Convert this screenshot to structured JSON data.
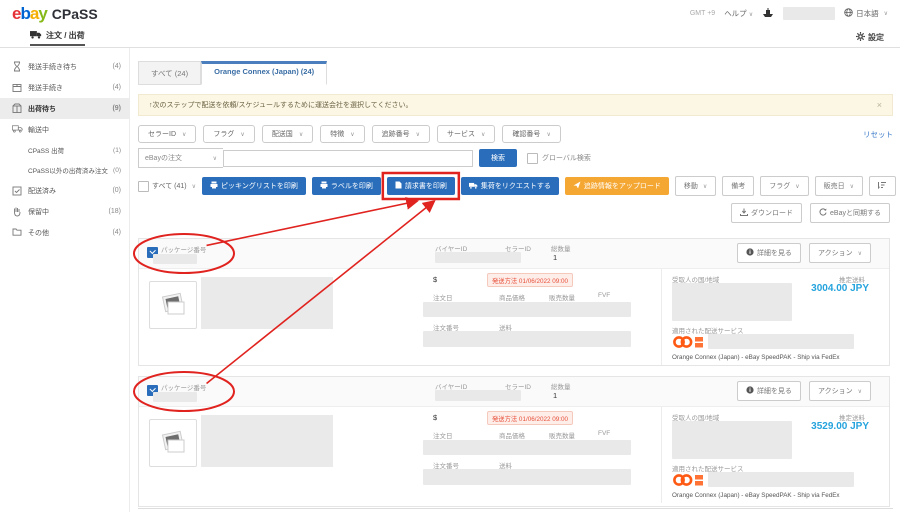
{
  "brand": {
    "e": "e",
    "b": "b",
    "a": "a",
    "y": "y",
    "product": "CPaSS"
  },
  "topbar": {
    "timezone": "GMT +9",
    "help": "ヘルプ",
    "language": "日本語"
  },
  "navbar": {
    "orders_tab": "注文 / 出荷",
    "settings": "設定"
  },
  "sidebar": {
    "items": [
      {
        "label": "発送手続き待ち",
        "count": "(4)"
      },
      {
        "label": "発送手続き",
        "count": "(4)"
      },
      {
        "label": "出荷待ち",
        "count": "(9)"
      },
      {
        "label": "輸送中",
        "count": ""
      },
      {
        "label": "CPaSS 出荷",
        "count": "(1)"
      },
      {
        "label": "CPaSS以外の出荷済み注文",
        "count": "(0)"
      },
      {
        "label": "配送済み",
        "count": "(0)"
      },
      {
        "label": "保留中",
        "count": "(18)"
      },
      {
        "label": "その他",
        "count": "(4)"
      }
    ]
  },
  "tabs": {
    "all": "すべて (24)",
    "carrier": "Orange Connex (Japan) (24)"
  },
  "banner": {
    "text": "↑次のステップで配送を依頼/スケジュールするために運送会社を選択してください。",
    "close": "×"
  },
  "filters": {
    "chips": [
      "セラーID",
      "フラグ",
      "配送国",
      "特徴",
      "追跡番号",
      "サービス",
      "確認番号"
    ],
    "reset": "リセット"
  },
  "search": {
    "category": "eBayの注文",
    "button": "検索",
    "global_label": "グローバル検索"
  },
  "actions": {
    "select_all": "すべて (41)",
    "print_picking": "ピッキングリストを印刷",
    "print_labels": "ラベルを印刷",
    "print_invoice": "請求書を印刷",
    "request_pickup": "集荷をリクエストする",
    "upload_tracking": "追跡情報をアップロード",
    "move": "移動",
    "memo": "備考",
    "flag": "フラグ",
    "sale_date": "販売日"
  },
  "list_tools": {
    "download": "ダウンロード",
    "sync": "eBayと同期する"
  },
  "card_labels": {
    "package_no": "パッケージ番号",
    "buyer_id": "バイヤーID",
    "seller_id": "セラーID",
    "total_qty": "総数量",
    "view_details": "詳細を見る",
    "action": "アクション",
    "currency": "$",
    "order_date": "注文日",
    "item_price": "商品価格",
    "sold_qty": "販売数量",
    "fvf": "FVF",
    "order_no": "注文番号",
    "shipping_fee": "送料",
    "recipient_region": "受取人の国/地域",
    "estimated_shipping": "推定送料",
    "applied_service": "適用された配送サービス"
  },
  "orders": [
    {
      "total_qty": "1",
      "ship_deadline": "発送方法 01/06/2022 09:00",
      "estimated_cost": "3004.00 JPY",
      "service": "Orange Connex (Japan) - eBay SpeedPAK - Ship via FedEx"
    },
    {
      "total_qty": "1",
      "ship_deadline": "発送方法 01/06/2022 09:00",
      "estimated_cost": "3529.00 JPY",
      "service": "Orange Connex (Japan) - eBay SpeedPAK - Ship via FedEx"
    }
  ],
  "colors": {
    "primary_blue": "#2a6ebb",
    "upload_orange": "#f5a733",
    "price_blue": "#25a3dd",
    "badge_red": "#e8503a",
    "annotation_red": "#e0231f"
  }
}
